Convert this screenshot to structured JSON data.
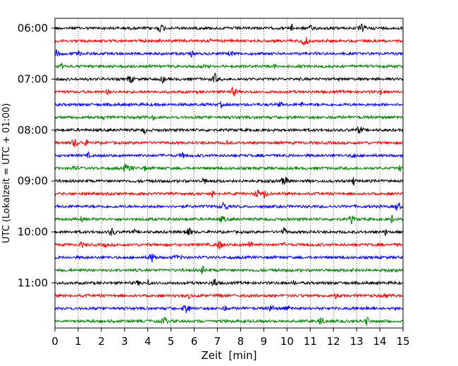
{
  "chart_data": {
    "type": "line",
    "title": "",
    "xlabel": "Zeit  [min]",
    "ylabel": "UTC (Lokalzeit = UTC + 01:00)",
    "xlim": [
      0,
      15
    ],
    "x_ticks": [
      "0",
      "1",
      "2",
      "3",
      "4",
      "5",
      "6",
      "7",
      "8",
      "9",
      "10",
      "11",
      "12",
      "13",
      "14",
      "15"
    ],
    "y_ticks": [
      "06:00",
      "07:00",
      "08:00",
      "09:00",
      "10:00",
      "11:00"
    ],
    "y_tick_traces": [
      0,
      4,
      8,
      12,
      16,
      20
    ],
    "grid": "vertical dotted at each minute",
    "trace_interval_min": 15,
    "series_colors": [
      "#000000",
      "#ff0000",
      "#0000ff",
      "#008000"
    ],
    "traces": [
      {
        "start": "06:00",
        "color": "#000000"
      },
      {
        "start": "06:15",
        "color": "#ff0000"
      },
      {
        "start": "06:30",
        "color": "#0000ff"
      },
      {
        "start": "06:45",
        "color": "#008000"
      },
      {
        "start": "07:00",
        "color": "#000000"
      },
      {
        "start": "07:15",
        "color": "#ff0000"
      },
      {
        "start": "07:30",
        "color": "#0000ff"
      },
      {
        "start": "07:45",
        "color": "#008000"
      },
      {
        "start": "08:00",
        "color": "#000000"
      },
      {
        "start": "08:15",
        "color": "#ff0000"
      },
      {
        "start": "08:30",
        "color": "#0000ff"
      },
      {
        "start": "08:45",
        "color": "#008000"
      },
      {
        "start": "09:00",
        "color": "#000000"
      },
      {
        "start": "09:15",
        "color": "#ff0000"
      },
      {
        "start": "09:30",
        "color": "#0000ff"
      },
      {
        "start": "09:45",
        "color": "#008000"
      },
      {
        "start": "10:00",
        "color": "#000000"
      },
      {
        "start": "10:15",
        "color": "#ff0000"
      },
      {
        "start": "10:30",
        "color": "#0000ff"
      },
      {
        "start": "10:45",
        "color": "#008000"
      },
      {
        "start": "11:00",
        "color": "#000000"
      },
      {
        "start": "11:15",
        "color": "#ff0000"
      },
      {
        "start": "11:30",
        "color": "#0000ff"
      },
      {
        "start": "11:45",
        "color": "#008000"
      }
    ]
  }
}
